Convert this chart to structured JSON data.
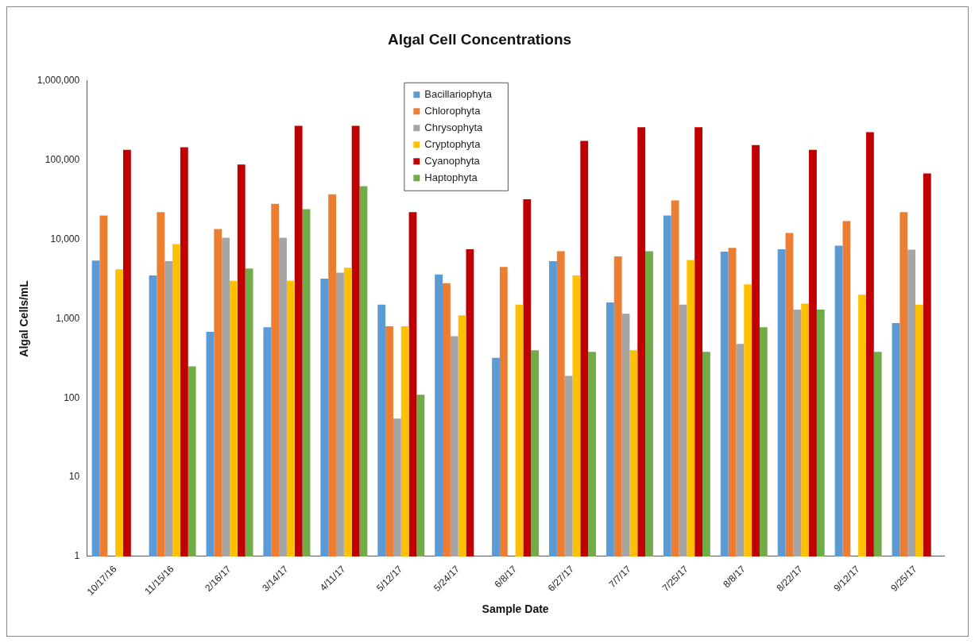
{
  "chart_data": {
    "type": "bar",
    "title": "Algal Cell Concentrations",
    "xlabel": "Sample Date",
    "ylabel": "Algal Cells/mL",
    "categories": [
      "10/17/16",
      "11/15/16",
      "2/16/17",
      "3/14/17",
      "4/11/17",
      "5/12/17",
      "5/24/17",
      "6/8/17",
      "6/27/17",
      "7/7/17",
      "7/25/17",
      "8/8/17",
      "8/22/17",
      "9/12/17",
      "9/25/17"
    ],
    "series": [
      {
        "name": "Bacillariophyta",
        "color": "#5b9bd5",
        "values": [
          5400,
          3500,
          680,
          780,
          3200,
          1500,
          3600,
          320,
          5300,
          1600,
          20000,
          7000,
          7500,
          8300,
          880
        ]
      },
      {
        "name": "Chlorophyta",
        "color": "#ed7d31",
        "values": [
          20000,
          22000,
          13500,
          28000,
          37000,
          800,
          2800,
          4500,
          7100,
          6100,
          31000,
          7800,
          12000,
          17000,
          22000
        ]
      },
      {
        "name": "Chrysophyta",
        "color": "#a5a5a5",
        "values": [
          null,
          5300,
          10500,
          10500,
          3800,
          55,
          600,
          null,
          190,
          1150,
          1500,
          480,
          1300,
          null,
          7400
        ]
      },
      {
        "name": "Cryptophyta",
        "color": "#ffc000",
        "values": [
          4200,
          8700,
          3000,
          3000,
          4400,
          800,
          1100,
          1500,
          3500,
          400,
          5500,
          2700,
          1550,
          2000,
          1500
        ]
      },
      {
        "name": "Cyanophyta",
        "color": "#c00000",
        "values": [
          135000,
          145000,
          88000,
          270000,
          270000,
          22000,
          7500,
          32000,
          175000,
          260000,
          260000,
          155000,
          135000,
          225000,
          68000
        ]
      },
      {
        "name": "Haptophyta",
        "color": "#70ad47",
        "values": [
          null,
          250,
          4300,
          24000,
          47000,
          110,
          null,
          400,
          380,
          7100,
          380,
          780,
          1300,
          380,
          null
        ]
      }
    ],
    "log": true,
    "ylim": [
      1,
      1000000
    ],
    "yticks": [
      1,
      10,
      100,
      {
        "value": 1000,
        "label": "1,000"
      },
      {
        "value": 10000,
        "label": "10,000"
      },
      {
        "value": 100000,
        "label": "100,000"
      },
      {
        "value": 1000000,
        "label": "1,000,000"
      }
    ],
    "legend": "top"
  }
}
